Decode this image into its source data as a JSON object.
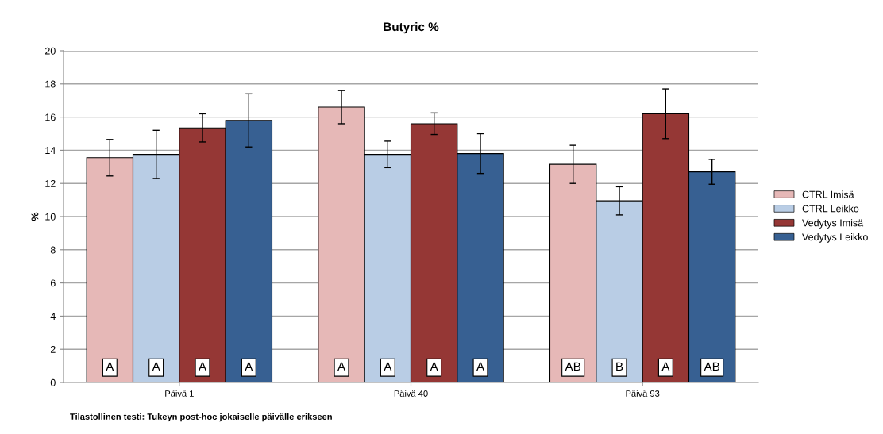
{
  "chart_data": {
    "type": "bar",
    "title": "Butyric %",
    "ylabel": "%",
    "categories": [
      "Päivä 1",
      "Päivä 40",
      "Päivä 93"
    ],
    "series": [
      {
        "name": "CTRL Imisä",
        "color": "#e6b8b7",
        "values": [
          13.55,
          16.6,
          13.15
        ],
        "errors": [
          1.1,
          1.0,
          1.15
        ],
        "value_labels": [
          "A",
          "A",
          "AB"
        ]
      },
      {
        "name": "CTRL Leikko",
        "color": "#b9cde5",
        "values": [
          13.75,
          13.75,
          10.95
        ],
        "errors": [
          1.45,
          0.8,
          0.85
        ],
        "value_labels": [
          "A",
          "A",
          "B"
        ]
      },
      {
        "name": "Vedytys Imisä",
        "color": "#953735",
        "values": [
          15.35,
          15.6,
          16.2
        ],
        "errors": [
          0.85,
          0.65,
          1.5
        ],
        "value_labels": [
          "A",
          "A",
          "A"
        ]
      },
      {
        "name": "Vedytys Leikko",
        "color": "#376092",
        "values": [
          15.8,
          13.8,
          12.7
        ],
        "errors": [
          1.6,
          1.2,
          0.75
        ],
        "value_labels": [
          "A",
          "A",
          "AB"
        ]
      }
    ],
    "ylim": [
      0,
      20
    ],
    "yticks": [
      0,
      2,
      4,
      6,
      8,
      10,
      12,
      14,
      16,
      18,
      20
    ],
    "grid": "y",
    "legend": "right",
    "annotations": [
      "Tilastollinen testi: Tukeyn post-hoc jokaiselle päivälle erikseen"
    ]
  }
}
